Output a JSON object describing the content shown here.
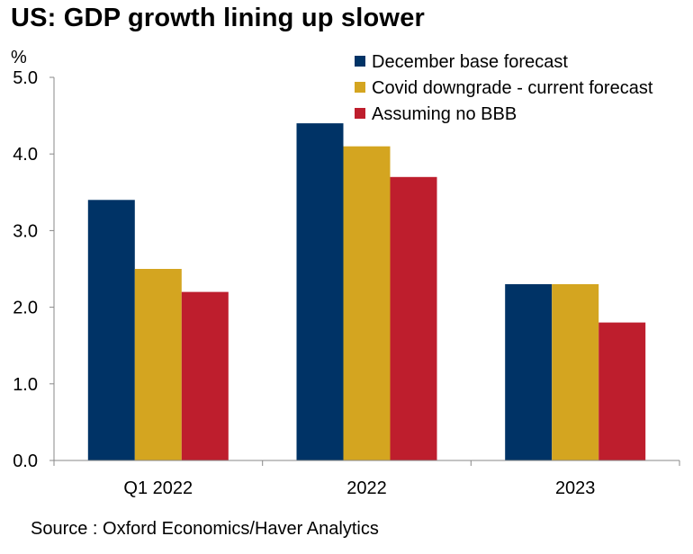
{
  "title": "US: GDP growth lining up slower",
  "source": "Source : Oxford Economics/Haver Analytics",
  "chart_data": {
    "type": "bar",
    "title": "US: GDP growth lining up slower",
    "ylabel": "%",
    "xlabel": "",
    "categories": [
      "Q1 2022",
      "2022",
      "2023"
    ],
    "series": [
      {
        "name": "December base forecast",
        "values": [
          3.4,
          4.4,
          2.3
        ],
        "color": "#003366"
      },
      {
        "name": "Covid downgrade - current forecast",
        "values": [
          2.5,
          4.1,
          2.3
        ],
        "color": "#d4a520"
      },
      {
        "name": "Assuming no BBB",
        "values": [
          2.2,
          3.7,
          1.8
        ],
        "color": "#be1e2d"
      }
    ],
    "ylim": [
      0,
      5
    ],
    "yticks": [
      "0.0",
      "1.0",
      "2.0",
      "3.0",
      "4.0",
      "5.0"
    ],
    "ytick_values": [
      0,
      1,
      2,
      3,
      4,
      5
    ],
    "grid": false,
    "legend_position": "top-right"
  }
}
